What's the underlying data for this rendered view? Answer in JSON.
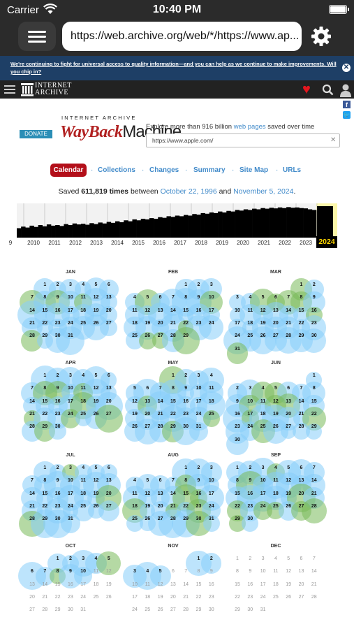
{
  "status_bar": {
    "carrier": "Carrier",
    "time": "10:40 PM"
  },
  "browser": {
    "url": "https://web.archive.org/web/*/https://www.ap..."
  },
  "banner": {
    "text": "We're continuing to fight for universal access to quality information—and you can help as we continue to make improvements. Will you chip in?",
    "close": "✕"
  },
  "ia_nav": {
    "logo_line1": "INTERNET",
    "logo_line2": "ARCHIVE"
  },
  "wayback": {
    "donate": "DONATE",
    "ia_small": "INTERNET ARCHIVE",
    "logo_way": "WayBack",
    "logo_machine": "Machine",
    "explore_pre": "Explore more than 916 billion",
    "explore_link": "web pages",
    "explore_post": "saved over time",
    "search_value": "https://www.apple.com/"
  },
  "tabs": {
    "calendar": "Calendar",
    "collections": "Collections",
    "changes": "Changes",
    "summary": "Summary",
    "sitemap": "Site Map",
    "urls": "URLs"
  },
  "saved": {
    "pre": "Saved",
    "count": "611,819 times",
    "mid": "between",
    "start": "October 22, 1996",
    "and": "and",
    "end": "November 5, 2024",
    "period": "."
  },
  "timeline": {
    "years": [
      "9",
      "2010",
      "2011",
      "2012",
      "2013",
      "2014",
      "2015",
      "2016",
      "2017",
      "2018",
      "2019",
      "2020",
      "2021",
      "2022",
      "2023"
    ],
    "active_year": "2024",
    "capture_levels": [
      0.3,
      0.35,
      0.32,
      0.38,
      0.34,
      0.4,
      0.36,
      0.42,
      0.38,
      0.4,
      0.37,
      0.43,
      0.4,
      0.45,
      0.42,
      0.44,
      0.41,
      0.46,
      0.43,
      0.48,
      0.45,
      0.5,
      0.47,
      0.52,
      0.49,
      0.55,
      0.52,
      0.58,
      0.55,
      0.6,
      0.58,
      0.62,
      0.6,
      0.65,
      0.63,
      0.68,
      0.66,
      0.7,
      0.68,
      0.72,
      0.7,
      0.75,
      0.73,
      0.78,
      0.76,
      0.8,
      0.78,
      0.83,
      0.8,
      0.85,
      0.83,
      0.88,
      0.86,
      0.9,
      0.88,
      0.92,
      0.9,
      0.94,
      0.92,
      0.95,
      0.93,
      0.96,
      0.94,
      0.97,
      0.95,
      0.96,
      0.94,
      0.93,
      0.9,
      0.88
    ]
  },
  "calendar": {
    "months": [
      {
        "name": "JAN",
        "start": 1,
        "days": 31,
        "captured": 31
      },
      {
        "name": "FEB",
        "start": 4,
        "days": 29,
        "captured": 29
      },
      {
        "name": "MAR",
        "start": 5,
        "days": 31,
        "captured": 31
      },
      {
        "name": "APR",
        "start": 1,
        "days": 30,
        "captured": 30
      },
      {
        "name": "MAY",
        "start": 3,
        "days": 31,
        "captured": 31
      },
      {
        "name": "JUN",
        "start": 6,
        "days": 30,
        "captured": 30
      },
      {
        "name": "JUL",
        "start": 1,
        "days": 31,
        "captured": 31
      },
      {
        "name": "AUG",
        "start": 4,
        "days": 31,
        "captured": 31
      },
      {
        "name": "SEP",
        "start": 0,
        "days": 30,
        "captured": 30
      },
      {
        "name": "OCT",
        "start": 2,
        "days": 31,
        "captured": 10
      },
      {
        "name": "NOV",
        "start": 5,
        "days": 30,
        "captured": 5
      },
      {
        "name": "DEC",
        "start": 0,
        "days": 31,
        "captured": 0
      }
    ]
  }
}
